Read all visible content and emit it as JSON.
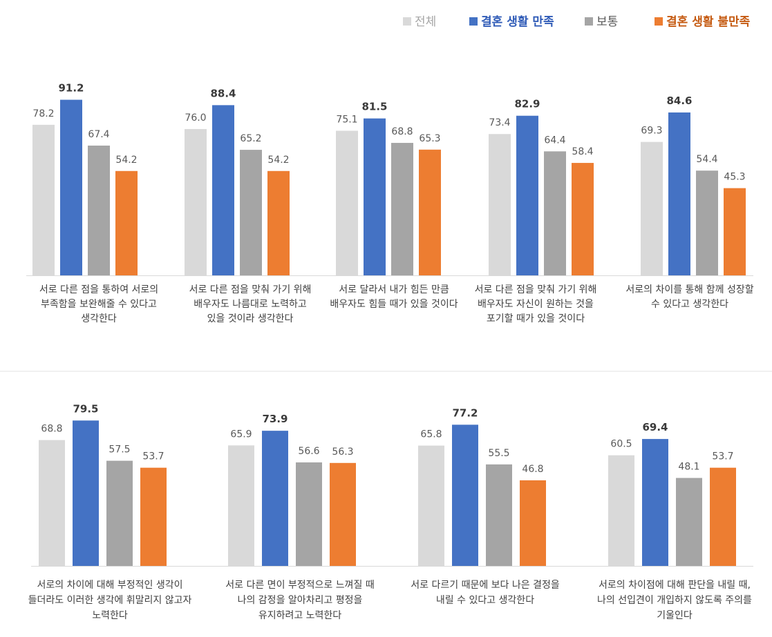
{
  "legend": [
    {
      "name": "전체",
      "color": "#d9d9d9",
      "text_color": "#a6a6a6"
    },
    {
      "name": "결혼 생활 만족",
      "color": "#4472c4",
      "text_color": "#2f5bb7"
    },
    {
      "name": "보통",
      "color": "#a5a5a5",
      "text_color": "#595959"
    },
    {
      "name": "결혼 생활 불만족",
      "color": "#ed7d31",
      "text_color": "#c55a11"
    }
  ],
  "chart_data": [
    {
      "type": "bar",
      "series_names": [
        "전체",
        "결혼 생활 만족",
        "보통",
        "결혼 생활 불만족"
      ],
      "ylim": [
        0,
        100
      ],
      "groups": [
        {
          "label_lines": [
            "서로 다른 점을 통하여 서로의",
            "부족함을 보완해줄 수 있다고",
            "생각한다"
          ],
          "values": [
            78.2,
            91.2,
            67.4,
            54.2
          ]
        },
        {
          "label_lines": [
            "서로 다른 점을 맞춰 가기 위해",
            "배우자도 나름대로 노력하고",
            "있을 것이라 생각한다"
          ],
          "values": [
            76.0,
            88.4,
            65.2,
            54.2
          ]
        },
        {
          "label_lines": [
            "서로 달라서 내가 힘든 만큼",
            "배우자도 힘들 때가 있을 것이다"
          ],
          "values": [
            75.1,
            81.5,
            68.8,
            65.3
          ]
        },
        {
          "label_lines": [
            "서로 다른 점을 맞춰 가기 위해",
            "배우자도 자신이 원하는 것을",
            "포기할 때가 있을 것이다"
          ],
          "values": [
            73.4,
            82.9,
            64.4,
            58.4
          ]
        },
        {
          "label_lines": [
            "서로의 차이를 통해 함께 성장할",
            "수 있다고 생각한다"
          ],
          "values": [
            69.3,
            84.6,
            54.4,
            45.3
          ]
        }
      ]
    },
    {
      "type": "bar",
      "series_names": [
        "전체",
        "결혼 생활 만족",
        "보통",
        "결혼 생활 불만족"
      ],
      "ylim": [
        0,
        100
      ],
      "groups": [
        {
          "label_lines": [
            "서로의 차이에 대해 부정적인 생각이",
            "들더라도 이러한 생각에 휘말리지 않고자",
            "노력한다"
          ],
          "values": [
            68.8,
            79.5,
            57.5,
            53.7
          ]
        },
        {
          "label_lines": [
            "서로 다른 면이 부정적으로 느껴질 때",
            "나의 감정을 알아차리고 평정을",
            "유지하려고 노력한다"
          ],
          "values": [
            65.9,
            73.9,
            56.6,
            56.3
          ]
        },
        {
          "label_lines": [
            "서로 다르기 때문에 보다 나은 결정을",
            "내릴 수 있다고 생각한다"
          ],
          "values": [
            65.8,
            77.2,
            55.5,
            46.8
          ]
        },
        {
          "label_lines": [
            "서로의 차이점에 대해 판단을 내릴 때,",
            "나의 선입견이 개입하지 않도록 주의를",
            "기울인다"
          ],
          "values": [
            60.5,
            69.4,
            48.1,
            53.7
          ]
        }
      ]
    }
  ]
}
